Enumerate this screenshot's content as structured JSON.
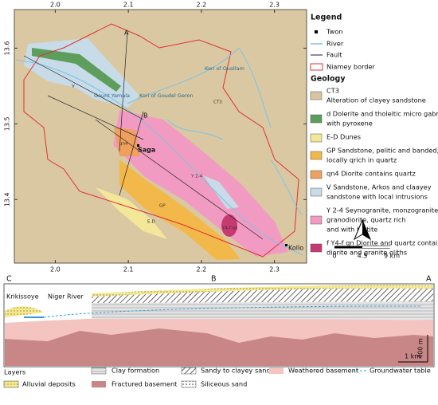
{
  "map": {
    "xlim": [
      1.944,
      2.344
    ],
    "ylim": [
      13.316,
      13.651
    ],
    "xticks": [
      {
        "value": 2.0,
        "label": "2.0"
      },
      {
        "value": 2.1,
        "label": "2.1"
      },
      {
        "value": 2.2,
        "label": "2.2"
      },
      {
        "value": 2.3,
        "label": "2.3"
      }
    ],
    "yticks": [
      {
        "value": 13.4,
        "label": "13.4"
      },
      {
        "value": 13.5,
        "label": "13.5"
      },
      {
        "value": 13.6,
        "label": "13.6"
      }
    ],
    "places": [
      "A",
      "B",
      "Kori of Ouallam",
      "Gount Yamala",
      "Kori of Goudel Geron",
      "Saga",
      "Kollo",
      "CT3",
      "qn4",
      "Y 2-4",
      "GP",
      "E-D",
      "V",
      "Y4-f qn"
    ],
    "legend": {
      "title": "Legend",
      "items": [
        "Twon",
        "River",
        "Fault",
        "Niamey border"
      ],
      "geology_title": "Geology",
      "geology": [
        {
          "color": "#d8c59f",
          "lines": [
            "CT3",
            "Alteration of clayey sandstone"
          ]
        },
        {
          "color": "#5d9e5c",
          "lines": [
            "d Dolerite and tholeitic micro gabros",
            "with pyroxene"
          ]
        },
        {
          "color": "#f4e79a",
          "lines": [
            "E-D Dunes"
          ]
        },
        {
          "color": "#f2b84a",
          "lines": [
            "GP Sandstone, pelitic and banded,",
            "locally qrich in quartz"
          ]
        },
        {
          "color": "#ef9f5e",
          "lines": [
            "qn4 Diorite contains quartz"
          ]
        },
        {
          "color": "#c7dbe8",
          "lines": [
            "V Sandstone, Arkos and claayey",
            "sandstone with local intrusions"
          ]
        },
        {
          "color": "#f29bc2",
          "lines": [
            "Y 2-4 Seynogranite, monzogranite,",
            "granodiorite, quartz rich",
            "and with biotite"
          ]
        },
        {
          "color": "#c63a70",
          "lines": [
            "f Y4-f qn Diorite and quartz contain",
            "diorite and granite oliths"
          ]
        }
      ]
    },
    "scale": [
      "0",
      "4.5",
      "9 km"
    ]
  },
  "section": {
    "labels": [
      "C",
      "B",
      "A",
      "Krikissoye",
      "Niger River",
      "400 m",
      "1 km"
    ],
    "layers_title": "Layers",
    "layers": [
      "Alluvial deposits",
      "Clay formation",
      "Fractured basement",
      "Sandy to clayey sand",
      "Siliceous sand",
      "Weathered basement",
      "Groundwater table"
    ]
  }
}
